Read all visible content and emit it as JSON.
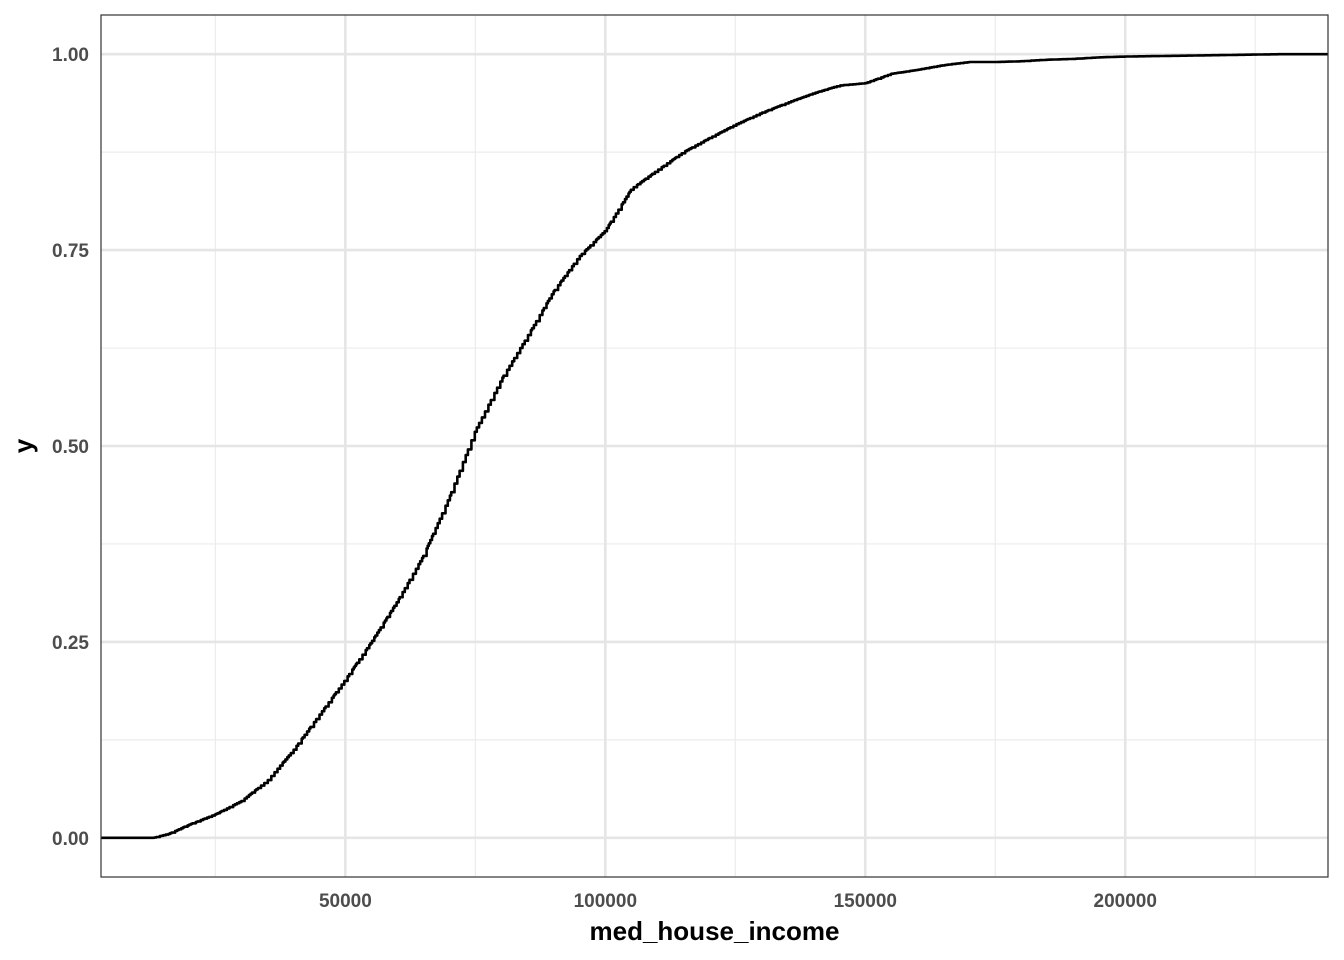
{
  "chart_data": {
    "type": "line",
    "step": true,
    "xlabel": "med_house_income",
    "ylabel": "y",
    "xlim": [
      3000,
      239000
    ],
    "ylim": [
      -0.05,
      1.05
    ],
    "x_ticks": [
      50000,
      100000,
      150000,
      200000
    ],
    "x_tick_labels": [
      "50000",
      "100000",
      "150000",
      "200000"
    ],
    "x_minor_ticks": [
      25000,
      75000,
      125000,
      175000,
      225000
    ],
    "y_ticks": [
      0,
      0.25,
      0.5,
      0.75,
      1
    ],
    "y_tick_labels": [
      "0.00",
      "0.25",
      "0.50",
      "0.75",
      "1.00"
    ],
    "y_minor_ticks": [
      0.125,
      0.375,
      0.625,
      0.875
    ],
    "grid": true,
    "series": [
      {
        "values": [
          [
            3000,
            0
          ],
          [
            13000,
            0
          ],
          [
            16000,
            0.005
          ],
          [
            20000,
            0.017
          ],
          [
            25000,
            0.03
          ],
          [
            30000,
            0.047
          ],
          [
            35000,
            0.073
          ],
          [
            40000,
            0.112
          ],
          [
            45000,
            0.157
          ],
          [
            50000,
            0.202
          ],
          [
            55000,
            0.25
          ],
          [
            60000,
            0.302
          ],
          [
            65000,
            0.36
          ],
          [
            70000,
            0.435
          ],
          [
            75000,
            0.52
          ],
          [
            80000,
            0.585
          ],
          [
            85000,
            0.64
          ],
          [
            90000,
            0.697
          ],
          [
            95000,
            0.742
          ],
          [
            100000,
            0.775
          ],
          [
            105000,
            0.828
          ],
          [
            110000,
            0.852
          ],
          [
            115000,
            0.875
          ],
          [
            120000,
            0.893
          ],
          [
            125000,
            0.91
          ],
          [
            130000,
            0.925
          ],
          [
            135000,
            0.938
          ],
          [
            140000,
            0.95
          ],
          [
            145000,
            0.96
          ],
          [
            150000,
            0.963
          ],
          [
            155000,
            0.975
          ],
          [
            160000,
            0.98
          ],
          [
            165000,
            0.986
          ],
          [
            170000,
            0.99
          ],
          [
            175000,
            0.99
          ],
          [
            180000,
            0.991
          ],
          [
            185000,
            0.993
          ],
          [
            190000,
            0.994
          ],
          [
            195000,
            0.996
          ],
          [
            200000,
            0.997
          ],
          [
            210000,
            0.998
          ],
          [
            220000,
            0.999
          ],
          [
            230000,
            1
          ],
          [
            239000,
            1
          ]
        ]
      }
    ]
  }
}
